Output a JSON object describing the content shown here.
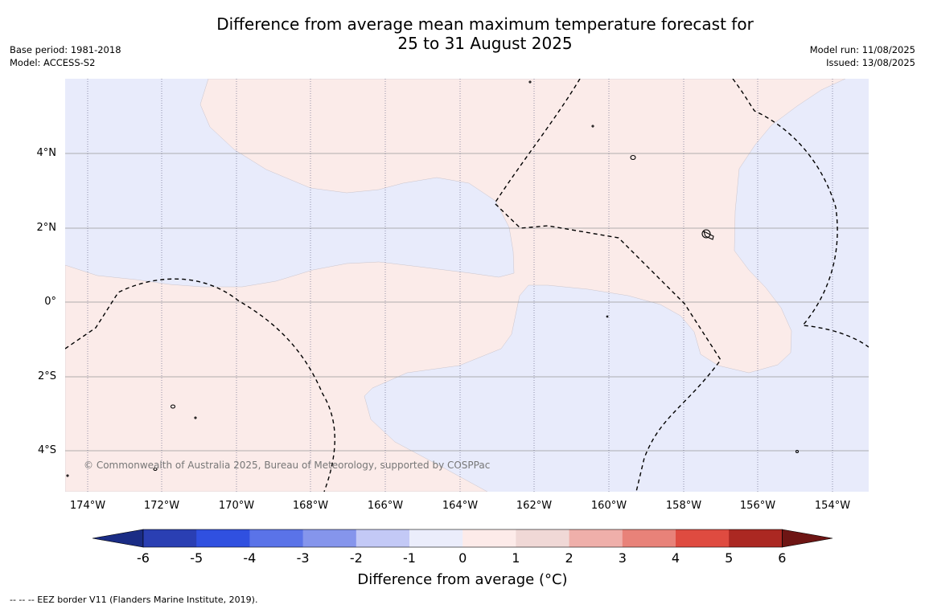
{
  "title": "Difference from average mean maximum temperature forecast for\n25 to 31 August 2025",
  "meta_left": {
    "base_period": "Base period: 1981-2018",
    "model": "Model: ACCESS-S2"
  },
  "meta_right": {
    "model_run": "Model run: 11/08/2025",
    "issued": "Issued: 13/08/2025"
  },
  "map": {
    "lat_labels": [
      "4°N",
      "2°N",
      "0°",
      "2°S",
      "4°S"
    ],
    "lon_labels": [
      "174°W",
      "172°W",
      "170°W",
      "168°W",
      "166°W",
      "164°W",
      "162°W",
      "160°W",
      "158°W",
      "156°W",
      "154°W"
    ],
    "colors": {
      "anomaly_0_to_1": "#fbebe9",
      "anomaly_minus1_to_0": "#e8ebfb",
      "coast": "#000000",
      "eez": "#000000",
      "grid": "#999999"
    },
    "copyright": "© Commonwealth of Australia 2025, Bureau of Meteorology, supported by COSPPac"
  },
  "colorbar": {
    "ticks": [
      "-6",
      "-5",
      "-4",
      "-3",
      "-2",
      "-1",
      "0",
      "1",
      "2",
      "3",
      "4",
      "5",
      "6"
    ],
    "colors": [
      "#1a2c85",
      "#2a3fb3",
      "#3050e0",
      "#5a73e8",
      "#8595ec",
      "#c3c9f6",
      "#ebedfb",
      "#fdebe9",
      "#f0d8d6",
      "#efafaa",
      "#e88279",
      "#df4b40",
      "#ab2822",
      "#6e1514"
    ],
    "label": "Difference from average (°C)"
  },
  "footnote": "--  --  -- EEZ border V11 (Flanders Marine Institute, 2019)."
}
